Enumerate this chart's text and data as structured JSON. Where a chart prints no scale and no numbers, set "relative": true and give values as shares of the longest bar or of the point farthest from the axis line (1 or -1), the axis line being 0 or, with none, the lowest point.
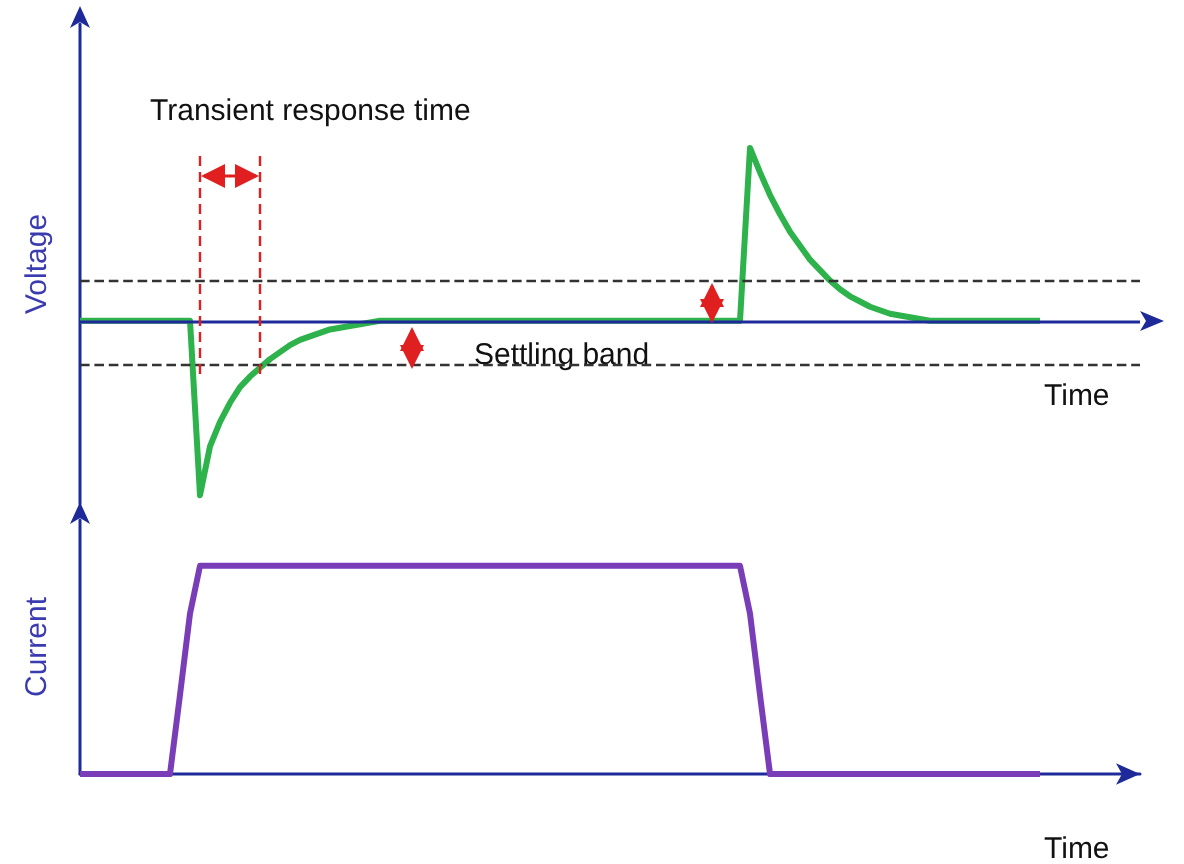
{
  "chart_data": [
    {
      "type": "line",
      "relative": true,
      "ylabel": "Voltage",
      "xlabel": "Time",
      "grid": false,
      "line_style": "solid",
      "categories": [
        null,
        null,
        null,
        null,
        null,
        null,
        null,
        null,
        null,
        null,
        null,
        null,
        null,
        null,
        null,
        null,
        null,
        null,
        null,
        null,
        null,
        null,
        null,
        null,
        null,
        null,
        null,
        null,
        null,
        null,
        null,
        null,
        null,
        null,
        null,
        null,
        null,
        null,
        null,
        null,
        null,
        null,
        null,
        null,
        null,
        null,
        null,
        null,
        null,
        null,
        null,
        null,
        null,
        null,
        null,
        null,
        null,
        null,
        null,
        null,
        null,
        null,
        null,
        null,
        null,
        null,
        null,
        null,
        null,
        null,
        null,
        null,
        null,
        null,
        null,
        null,
        null,
        null,
        null,
        null,
        null,
        null,
        null,
        null,
        null,
        null,
        null,
        null,
        null,
        null,
        null,
        null,
        null,
        null,
        null,
        null,
        null,
        null,
        null,
        null,
        null,
        null,
        null,
        null,
        null,
        null,
        null
      ],
      "series": [
        {
          "color": "#2eb24b",
          "values": [
            0,
            0,
            0,
            0,
            0,
            0,
            0,
            0,
            0,
            0,
            0,
            0,
            -1,
            -0.72,
            -0.58,
            -0.47,
            -0.38,
            -0.32,
            -0.27,
            -0.22,
            -0.18,
            -0.14,
            -0.11,
            -0.09,
            -0.07,
            -0.05,
            -0.04,
            -0.03,
            -0.02,
            -0.01,
            0,
            0,
            0,
            0,
            0,
            0,
            0,
            0,
            0,
            0,
            0,
            0,
            0,
            0,
            0,
            0,
            0,
            0,
            0,
            0,
            0,
            0,
            0,
            0,
            0,
            0,
            0,
            0,
            0,
            0,
            0,
            0,
            0,
            0,
            0,
            0,
            0,
            0.99,
            0.85,
            0.72,
            0.61,
            0.51,
            0.43,
            0.35,
            0.29,
            0.23,
            0.18,
            0.14,
            0.11,
            0.08,
            0.06,
            0.04,
            0.03,
            0.02,
            0.01,
            0,
            0,
            0,
            0,
            0,
            0,
            0,
            0,
            0,
            0,
            0,
            0,
            null,
            null,
            null,
            null,
            null,
            null,
            null,
            null,
            null,
            null
          ]
        }
      ],
      "ref_lines": [
        {
          "axis": "y",
          "value": 0,
          "color": "#1f2a9a",
          "line_style": "solid"
        },
        {
          "axis": "y",
          "value": -0.25,
          "color": "#333333",
          "line_style": "dashed"
        },
        {
          "axis": "y",
          "value": 0.23,
          "color": "#333333",
          "line_style": "dashed"
        }
      ],
      "annotations": [
        "Transient response time",
        "Settling band"
      ]
    },
    {
      "type": "line",
      "relative": true,
      "ylabel": "Current",
      "xlabel": "Time",
      "grid": false,
      "line_style": "solid",
      "categories": [
        null,
        null,
        null,
        null,
        null,
        null,
        null,
        null,
        null,
        null,
        null,
        null,
        null,
        null,
        null,
        null,
        null,
        null,
        null,
        null,
        null,
        null,
        null,
        null,
        null,
        null,
        null,
        null,
        null,
        null,
        null,
        null,
        null,
        null,
        null,
        null,
        null,
        null,
        null,
        null,
        null,
        null,
        null,
        null,
        null,
        null,
        null,
        null,
        null,
        null,
        null,
        null,
        null,
        null,
        null,
        null,
        null,
        null,
        null,
        null,
        null,
        null,
        null,
        null,
        null,
        null,
        null,
        null,
        null,
        null,
        null,
        null,
        null,
        null,
        null,
        null,
        null,
        null,
        null,
        null,
        null,
        null,
        null,
        null,
        null,
        null,
        null,
        null,
        null,
        null,
        null,
        null,
        null,
        null,
        null,
        null,
        null,
        null,
        null,
        null,
        null,
        null,
        null,
        null,
        null,
        null,
        null
      ],
      "series": [
        {
          "color": "#7a3db8",
          "values": [
            0,
            0,
            0,
            0,
            0,
            0,
            0,
            0,
            0,
            0,
            0.38,
            0.77,
            1,
            1,
            1,
            1,
            1,
            1,
            1,
            1,
            1,
            1,
            1,
            1,
            1,
            1,
            1,
            1,
            1,
            1,
            1,
            1,
            1,
            1,
            1,
            1,
            1,
            1,
            1,
            1,
            1,
            1,
            1,
            1,
            1,
            1,
            1,
            1,
            1,
            1,
            1,
            1,
            1,
            1,
            1,
            1,
            1,
            1,
            1,
            1,
            1,
            1,
            1,
            1,
            1,
            1,
            1,
            0.77,
            0.38,
            0,
            0,
            0,
            0,
            0,
            0,
            0,
            0,
            0,
            0,
            0,
            0,
            0,
            0,
            0,
            0,
            0,
            0,
            0,
            0,
            0,
            0,
            0,
            0,
            0,
            0,
            0,
            0,
            null,
            null,
            null,
            null,
            null,
            null,
            null,
            null,
            null,
            null
          ]
        }
      ]
    }
  ]
}
